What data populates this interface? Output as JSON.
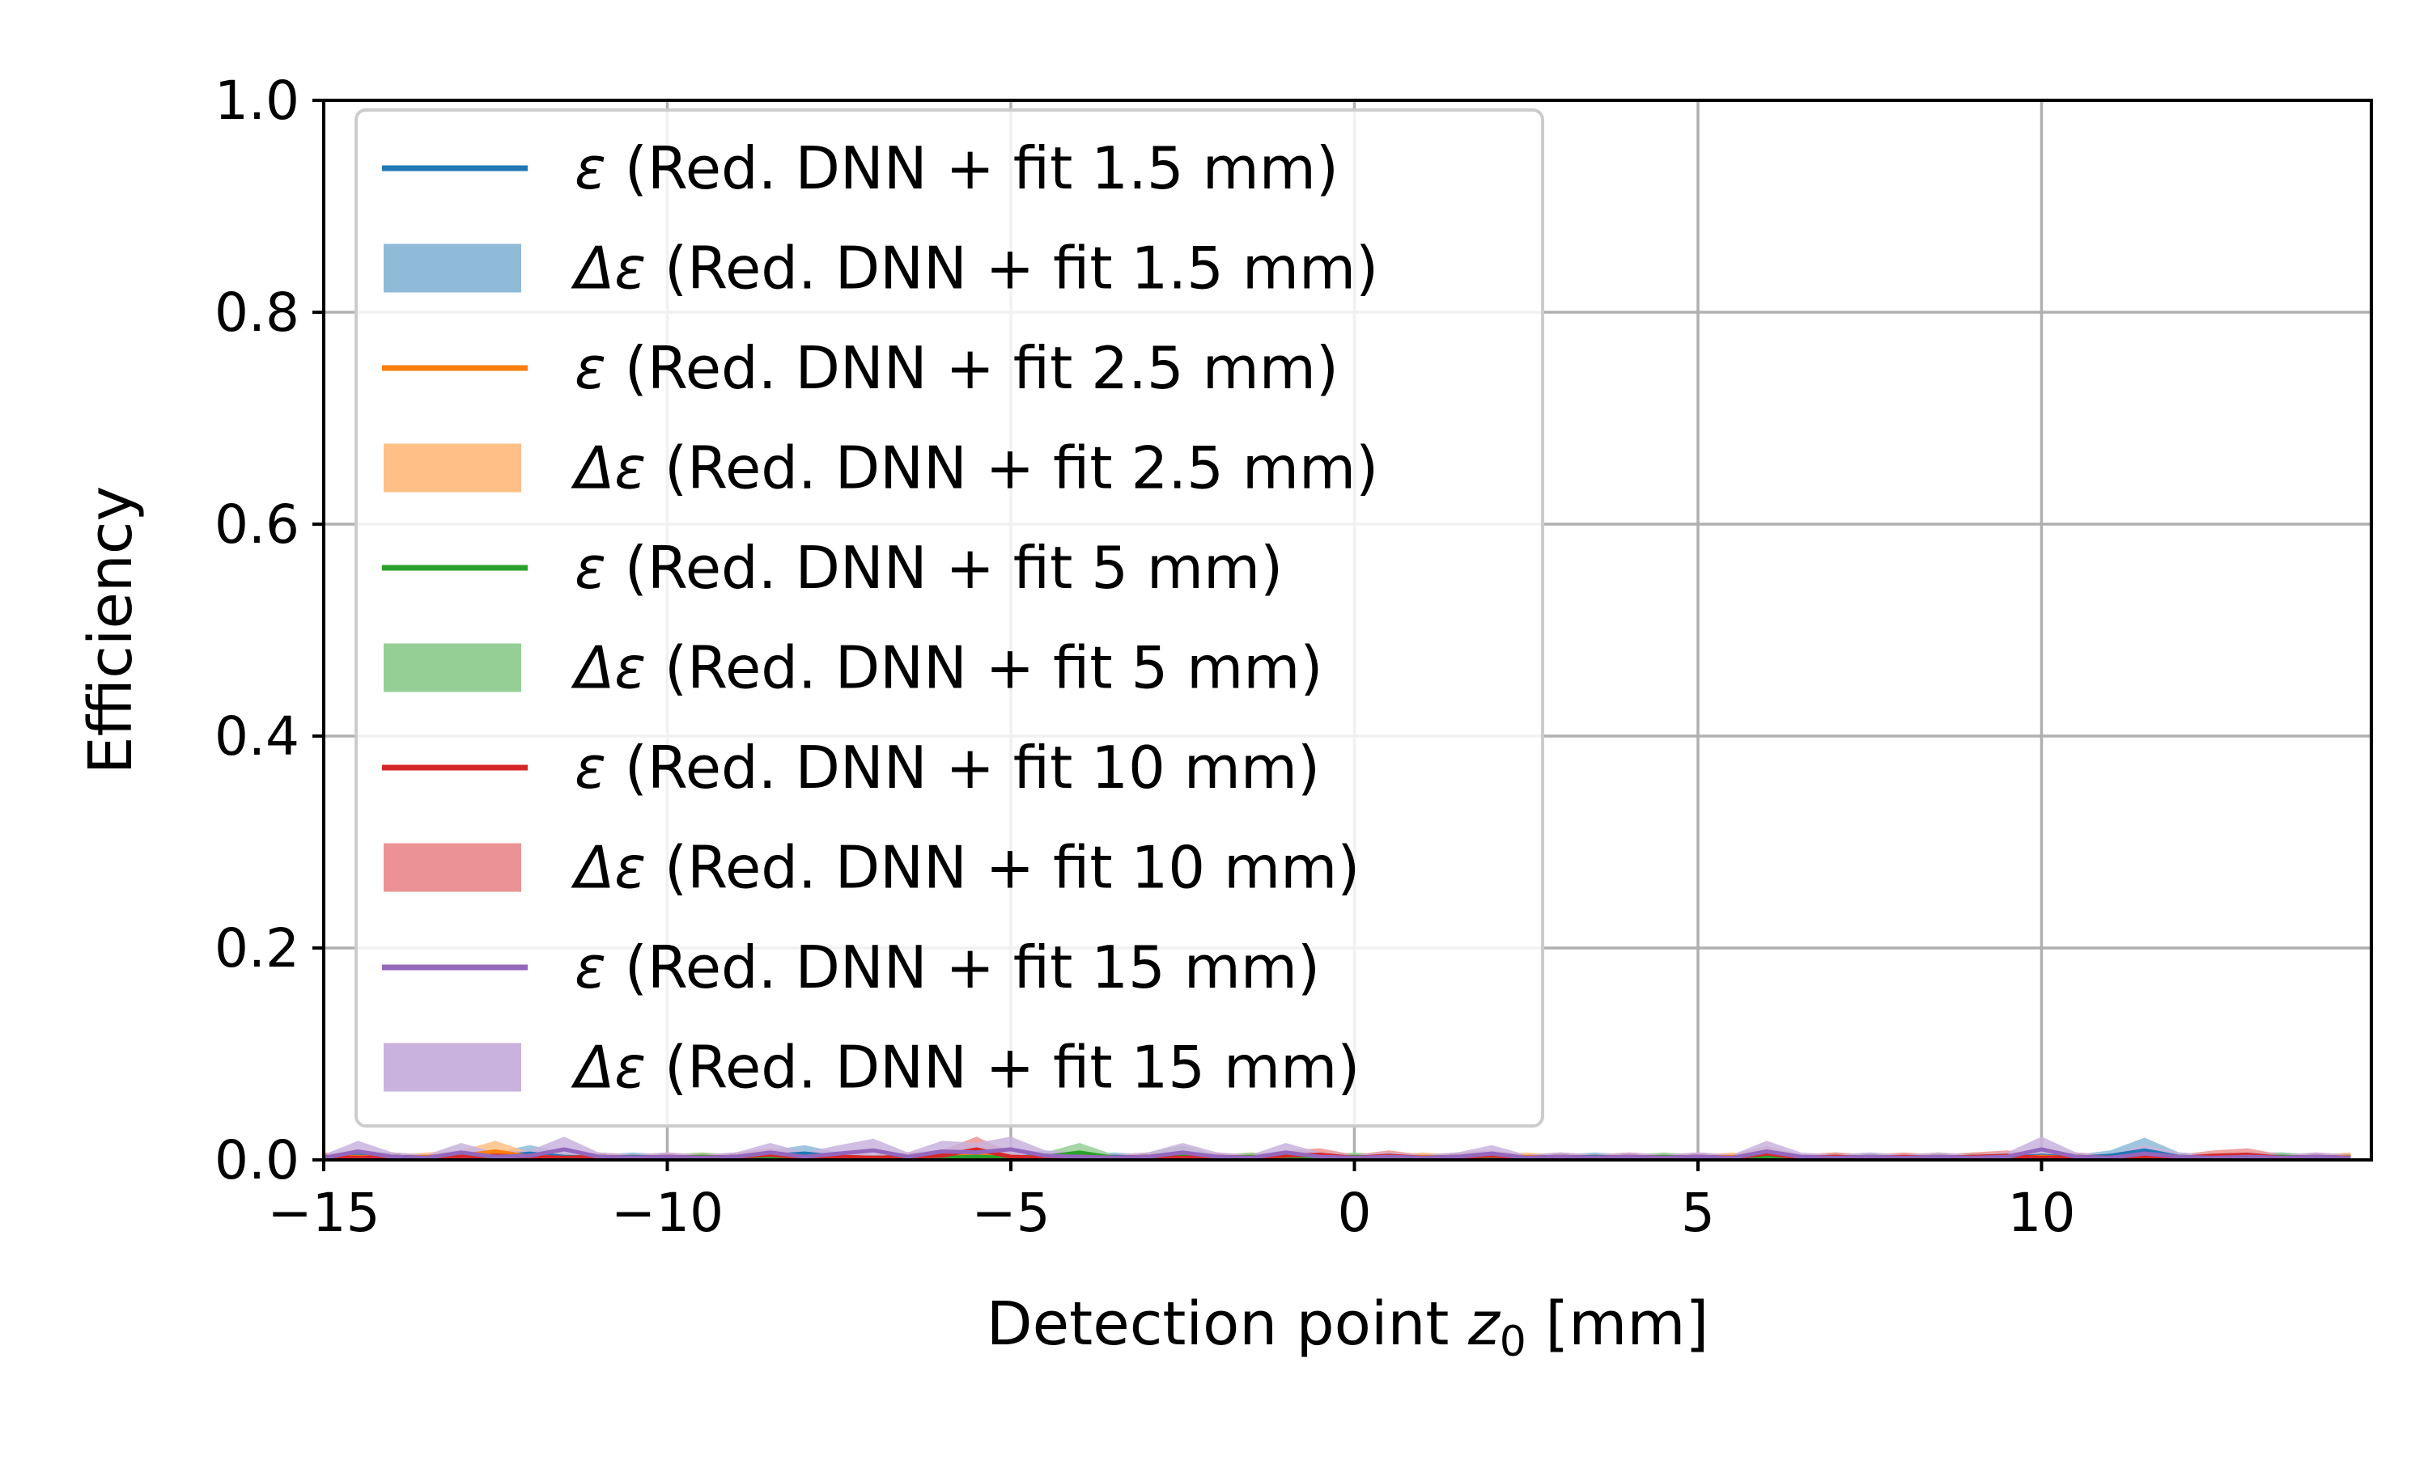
{
  "chart_data": {
    "type": "line",
    "title": "",
    "xlabel_parts": {
      "pre": "Detection point ",
      "var": "z",
      "sub": "0",
      "post": " [mm]"
    },
    "ylabel": "Efficiency",
    "xlim": [
      -15,
      14.8
    ],
    "ylim": [
      0,
      1
    ],
    "xticks": [
      -15,
      -10,
      -5,
      0,
      5,
      10
    ],
    "xtick_labels": [
      "−15",
      "−10",
      "−5",
      "0",
      "5",
      "10"
    ],
    "yticks": [
      0,
      0.2,
      0.4,
      0.6,
      0.8,
      1.0
    ],
    "ytick_labels": [
      "0.0",
      "0.2",
      "0.4",
      "0.6",
      "0.8",
      "1.0"
    ],
    "grid": true,
    "legend_position": "upper-left",
    "x": [
      -15,
      -14.5,
      -14,
      -13.5,
      -13,
      -12.5,
      -12,
      -11.5,
      -11,
      -10.5,
      -10,
      -9.5,
      -9,
      -8.5,
      -8,
      -7.5,
      -7,
      -6.5,
      -6,
      -5.5,
      -5,
      -4.5,
      -4,
      -3.5,
      -3,
      -2.5,
      -2,
      -1.5,
      -1,
      -0.5,
      0,
      0.5,
      1,
      1.5,
      2,
      2.5,
      3,
      3.5,
      4,
      4.5,
      5,
      5.5,
      6,
      6.5,
      7,
      7.5,
      8,
      8.5,
      9,
      9.5,
      10,
      10.5,
      11,
      11.5,
      12,
      12.5,
      13,
      13.5,
      14,
      14.5
    ],
    "series": [
      {
        "name": "(Red. DNN + fit 1.5 mm)",
        "color": "#1f77b4",
        "band_color": "#8fbbd9",
        "values": [
          0.002,
          0.004,
          0.003,
          0.002,
          0.004,
          0.003,
          0.006,
          0.003,
          0.002,
          0.003,
          0.002,
          0.002,
          0.003,
          0.004,
          0.006,
          0.003,
          0.002,
          0.003,
          0.004,
          0.003,
          0.002,
          0.004,
          0.002,
          0.003,
          0.002,
          0.003,
          0.002,
          0.002,
          0.003,
          0.002,
          0.002,
          0.003,
          0.002,
          0.002,
          0.003,
          0.002,
          0.002,
          0.003,
          0.002,
          0.002,
          0.003,
          0.002,
          0.004,
          0.002,
          0.003,
          0.002,
          0.002,
          0.003,
          0.002,
          0.002,
          0.004,
          0.002,
          0.004,
          0.009,
          0.003,
          0.002,
          0.003,
          0.003,
          0.002,
          0.003
        ],
        "errors": [
          0.003,
          0.005,
          0.004,
          0.003,
          0.005,
          0.004,
          0.008,
          0.004,
          0.003,
          0.004,
          0.003,
          0.003,
          0.004,
          0.005,
          0.008,
          0.004,
          0.003,
          0.004,
          0.005,
          0.004,
          0.003,
          0.005,
          0.003,
          0.004,
          0.003,
          0.004,
          0.003,
          0.003,
          0.004,
          0.003,
          0.003,
          0.004,
          0.003,
          0.003,
          0.004,
          0.003,
          0.003,
          0.004,
          0.003,
          0.003,
          0.004,
          0.003,
          0.005,
          0.003,
          0.004,
          0.003,
          0.003,
          0.004,
          0.003,
          0.003,
          0.005,
          0.003,
          0.005,
          0.012,
          0.004,
          0.003,
          0.004,
          0.004,
          0.003,
          0.004
        ]
      },
      {
        "name": "(Red. DNN + fit 2.5 mm)",
        "color": "#ff7f0e",
        "band_color": "#ffbf86",
        "values": [
          0.002,
          0.003,
          0.002,
          0.003,
          0.004,
          0.008,
          0.003,
          0.002,
          0.003,
          0.002,
          0.002,
          0.003,
          0.002,
          0.003,
          0.002,
          0.003,
          0.002,
          0.003,
          0.004,
          0.005,
          0.003,
          0.002,
          0.003,
          0.002,
          0.003,
          0.002,
          0.002,
          0.003,
          0.002,
          0.003,
          0.002,
          0.002,
          0.003,
          0.002,
          0.002,
          0.003,
          0.002,
          0.002,
          0.003,
          0.002,
          0.002,
          0.003,
          0.002,
          0.002,
          0.003,
          0.002,
          0.002,
          0.003,
          0.002,
          0.002,
          0.003,
          0.002,
          0.002,
          0.003,
          0.002,
          0.002,
          0.003,
          0.002,
          0.002,
          0.003
        ],
        "errors": [
          0.003,
          0.004,
          0.003,
          0.004,
          0.005,
          0.01,
          0.004,
          0.003,
          0.004,
          0.003,
          0.003,
          0.004,
          0.003,
          0.004,
          0.003,
          0.004,
          0.003,
          0.004,
          0.005,
          0.006,
          0.004,
          0.003,
          0.004,
          0.003,
          0.004,
          0.003,
          0.003,
          0.004,
          0.003,
          0.004,
          0.003,
          0.003,
          0.004,
          0.003,
          0.003,
          0.004,
          0.003,
          0.003,
          0.004,
          0.003,
          0.003,
          0.004,
          0.003,
          0.003,
          0.004,
          0.003,
          0.003,
          0.004,
          0.003,
          0.003,
          0.004,
          0.003,
          0.003,
          0.004,
          0.003,
          0.003,
          0.004,
          0.003,
          0.003,
          0.004
        ]
      },
      {
        "name": "(Red. DNN + fit 5 mm)",
        "color": "#2ca02c",
        "band_color": "#96cf96",
        "values": [
          0.002,
          0.002,
          0.003,
          0.002,
          0.002,
          0.003,
          0.002,
          0.002,
          0.003,
          0.002,
          0.002,
          0.003,
          0.002,
          0.002,
          0.003,
          0.002,
          0.002,
          0.003,
          0.002,
          0.003,
          0.002,
          0.003,
          0.007,
          0.002,
          0.003,
          0.006,
          0.002,
          0.003,
          0.002,
          0.002,
          0.003,
          0.002,
          0.002,
          0.003,
          0.002,
          0.002,
          0.003,
          0.002,
          0.002,
          0.003,
          0.002,
          0.002,
          0.003,
          0.002,
          0.002,
          0.003,
          0.002,
          0.002,
          0.003,
          0.002,
          0.002,
          0.003,
          0.002,
          0.002,
          0.003,
          0.002,
          0.002,
          0.003,
          0.002,
          0.002
        ],
        "errors": [
          0.003,
          0.003,
          0.004,
          0.003,
          0.003,
          0.004,
          0.003,
          0.003,
          0.004,
          0.003,
          0.003,
          0.004,
          0.003,
          0.003,
          0.004,
          0.003,
          0.003,
          0.004,
          0.003,
          0.004,
          0.003,
          0.004,
          0.009,
          0.003,
          0.004,
          0.008,
          0.003,
          0.004,
          0.003,
          0.003,
          0.004,
          0.003,
          0.003,
          0.004,
          0.003,
          0.003,
          0.004,
          0.003,
          0.003,
          0.004,
          0.003,
          0.003,
          0.004,
          0.003,
          0.003,
          0.004,
          0.003,
          0.003,
          0.004,
          0.003,
          0.003,
          0.004,
          0.003,
          0.003,
          0.004,
          0.003,
          0.003,
          0.004,
          0.003,
          0.003
        ]
      },
      {
        "name": "(Red. DNN + fit 10 mm)",
        "color": "#d62728",
        "band_color": "#eb9394",
        "values": [
          0.003,
          0.002,
          0.003,
          0.002,
          0.003,
          0.004,
          0.003,
          0.002,
          0.003,
          0.002,
          0.003,
          0.002,
          0.003,
          0.005,
          0.002,
          0.003,
          0.002,
          0.003,
          0.004,
          0.01,
          0.003,
          0.002,
          0.003,
          0.002,
          0.003,
          0.002,
          0.003,
          0.002,
          0.004,
          0.005,
          0.002,
          0.004,
          0.002,
          0.003,
          0.004,
          0.002,
          0.003,
          0.002,
          0.003,
          0.002,
          0.003,
          0.002,
          0.006,
          0.002,
          0.003,
          0.002,
          0.003,
          0.002,
          0.003,
          0.004,
          0.002,
          0.003,
          0.002,
          0.003,
          0.002,
          0.004,
          0.005,
          0.002,
          0.003,
          0.002
        ],
        "errors": [
          0.004,
          0.003,
          0.004,
          0.003,
          0.004,
          0.005,
          0.004,
          0.003,
          0.004,
          0.003,
          0.004,
          0.003,
          0.004,
          0.006,
          0.003,
          0.004,
          0.003,
          0.004,
          0.005,
          0.012,
          0.004,
          0.003,
          0.004,
          0.003,
          0.004,
          0.003,
          0.004,
          0.003,
          0.005,
          0.006,
          0.003,
          0.005,
          0.003,
          0.004,
          0.005,
          0.003,
          0.004,
          0.003,
          0.004,
          0.003,
          0.004,
          0.003,
          0.007,
          0.003,
          0.004,
          0.003,
          0.004,
          0.003,
          0.004,
          0.005,
          0.003,
          0.004,
          0.003,
          0.004,
          0.003,
          0.005,
          0.006,
          0.003,
          0.004,
          0.003
        ]
      },
      {
        "name": "(Red. DNN + fit 15 mm)",
        "color": "#9467bd",
        "band_color": "#c9b3de",
        "values": [
          0.002,
          0.008,
          0.003,
          0.002,
          0.007,
          0.003,
          0.004,
          0.01,
          0.003,
          0.002,
          0.003,
          0.002,
          0.003,
          0.007,
          0.003,
          0.006,
          0.009,
          0.003,
          0.008,
          0.007,
          0.01,
          0.004,
          0.003,
          0.002,
          0.003,
          0.007,
          0.003,
          0.002,
          0.007,
          0.003,
          0.002,
          0.003,
          0.002,
          0.003,
          0.006,
          0.002,
          0.003,
          0.002,
          0.003,
          0.002,
          0.003,
          0.002,
          0.008,
          0.003,
          0.002,
          0.003,
          0.002,
          0.003,
          0.002,
          0.003,
          0.01,
          0.003,
          0.002,
          0.006,
          0.003,
          0.002,
          0.003,
          0.002,
          0.003,
          0.002
        ],
        "errors": [
          0.003,
          0.01,
          0.004,
          0.003,
          0.009,
          0.004,
          0.005,
          0.012,
          0.004,
          0.003,
          0.004,
          0.003,
          0.004,
          0.009,
          0.004,
          0.008,
          0.011,
          0.004,
          0.01,
          0.009,
          0.012,
          0.005,
          0.004,
          0.003,
          0.004,
          0.009,
          0.004,
          0.003,
          0.009,
          0.004,
          0.003,
          0.004,
          0.003,
          0.004,
          0.008,
          0.003,
          0.004,
          0.003,
          0.004,
          0.003,
          0.004,
          0.003,
          0.01,
          0.004,
          0.003,
          0.004,
          0.003,
          0.004,
          0.003,
          0.004,
          0.012,
          0.004,
          0.003,
          0.008,
          0.004,
          0.003,
          0.004,
          0.003,
          0.004,
          0.003
        ]
      }
    ],
    "legend": {
      "entries": [
        {
          "kind": "line",
          "series": 0,
          "prefix": "ε",
          "label": " (Red. DNN + fit 1.5 mm)"
        },
        {
          "kind": "band",
          "series": 0,
          "prefix": "Δε",
          "label": " (Red. DNN + fit 1.5 mm)"
        },
        {
          "kind": "line",
          "series": 1,
          "prefix": "ε",
          "label": " (Red. DNN + fit 2.5 mm)"
        },
        {
          "kind": "band",
          "series": 1,
          "prefix": "Δε",
          "label": " (Red. DNN + fit 2.5 mm)"
        },
        {
          "kind": "line",
          "series": 2,
          "prefix": "ε",
          "label": " (Red. DNN + fit 5 mm)"
        },
        {
          "kind": "band",
          "series": 2,
          "prefix": "Δε",
          "label": " (Red. DNN + fit 5 mm)"
        },
        {
          "kind": "line",
          "series": 3,
          "prefix": "ε",
          "label": " (Red. DNN + fit 10 mm)"
        },
        {
          "kind": "band",
          "series": 3,
          "prefix": "Δε",
          "label": " (Red. DNN + fit 10 mm)"
        },
        {
          "kind": "line",
          "series": 4,
          "prefix": "ε",
          "label": " (Red. DNN + fit 15 mm)"
        },
        {
          "kind": "band",
          "series": 4,
          "prefix": "Δε",
          "label": " (Red. DNN + fit 15 mm)"
        }
      ]
    }
  }
}
